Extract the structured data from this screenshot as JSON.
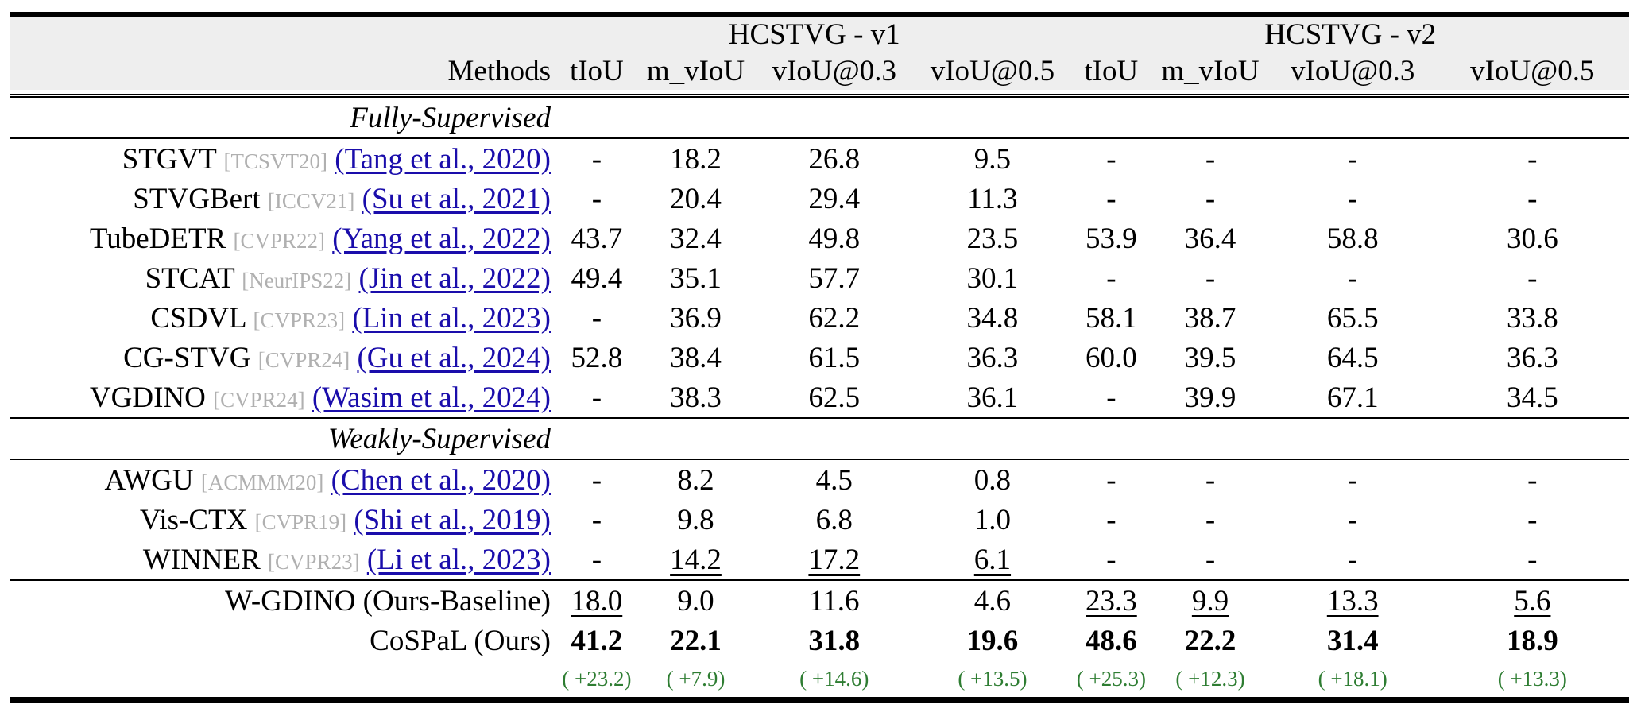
{
  "header": {
    "group_v1": "HCSTVG - v1",
    "group_v2": "HCSTVG - v2",
    "methods_label": "Methods",
    "cols": [
      "tIoU",
      "m_vIoU",
      "vIoU@0.3",
      "vIoU@0.5",
      "tIoU",
      "m_vIoU",
      "vIoU@0.3",
      "vIoU@0.5"
    ]
  },
  "sections": {
    "fully": "Fully-Supervised",
    "weakly": "Weakly-Supervised"
  },
  "rows": [
    {
      "name": "STGVT",
      "venue": "[TCSVT20]",
      "cite": "(Tang et al., 2020)",
      "values": [
        "-",
        "18.2",
        "26.8",
        "9.5",
        "-",
        "-",
        "-",
        "-"
      ]
    },
    {
      "name": "STVGBert",
      "venue": "[ICCV21]",
      "cite": "(Su et al., 2021)",
      "values": [
        "-",
        "20.4",
        "29.4",
        "11.3",
        "-",
        "-",
        "-",
        "-"
      ]
    },
    {
      "name": "TubeDETR",
      "venue": "[CVPR22]",
      "cite": "(Yang et al., 2022)",
      "values": [
        "43.7",
        "32.4",
        "49.8",
        "23.5",
        "53.9",
        "36.4",
        "58.8",
        "30.6"
      ]
    },
    {
      "name": "STCAT",
      "venue": "[NeurIPS22]",
      "cite": "(Jin et al., 2022)",
      "values": [
        "49.4",
        "35.1",
        "57.7",
        "30.1",
        "-",
        "-",
        "-",
        "-"
      ]
    },
    {
      "name": "CSDVL",
      "venue": "[CVPR23]",
      "cite": "(Lin et al., 2023)",
      "values": [
        "-",
        "36.9",
        "62.2",
        "34.8",
        "58.1",
        "38.7",
        "65.5",
        "33.8"
      ]
    },
    {
      "name": "CG-STVG",
      "venue": "[CVPR24]",
      "cite": "(Gu et al., 2024)",
      "values": [
        "52.8",
        "38.4",
        "61.5",
        "36.3",
        "60.0",
        "39.5",
        "64.5",
        "36.3"
      ]
    },
    {
      "name": "VGDINO",
      "venue": "[CVPR24]",
      "cite": "(Wasim et al., 2024)",
      "values": [
        "-",
        "38.3",
        "62.5",
        "36.1",
        "-",
        "39.9",
        "67.1",
        "34.5"
      ]
    },
    {
      "name": "AWGU",
      "venue": "[ACMMM20]",
      "cite": "(Chen et al., 2020)",
      "values": [
        "-",
        "8.2",
        "4.5",
        "0.8",
        "-",
        "-",
        "-",
        "-"
      ]
    },
    {
      "name": "Vis-CTX",
      "venue": "[CVPR19]",
      "cite": "(Shi et al., 2019)",
      "values": [
        "-",
        "9.8",
        "6.8",
        "1.0",
        "-",
        "-",
        "-",
        "-"
      ]
    },
    {
      "name": "WINNER",
      "venue": "[CVPR23]",
      "cite": "(Li et al., 2023)",
      "values": [
        "-",
        "14.2",
        "17.2",
        "6.1",
        "-",
        "-",
        "-",
        "-"
      ]
    },
    {
      "name": "W-GDINO (Ours-Baseline)",
      "venue": "",
      "cite": "",
      "values": [
        "18.0",
        "9.0",
        "11.6",
        "4.6",
        "23.3",
        "9.9",
        "13.3",
        "5.6"
      ]
    },
    {
      "name": "CoSPaL (Ours)",
      "venue": "",
      "cite": "",
      "values": [
        "41.2",
        "22.1",
        "31.8",
        "19.6",
        "48.6",
        "22.2",
        "31.4",
        "18.9"
      ]
    }
  ],
  "gains": [
    "( +23.2)",
    "( +7.9)",
    "( +14.6)",
    "( +13.5)",
    "( +25.3)",
    "( +12.3)",
    "( +18.1)",
    "( +13.3)"
  ]
}
